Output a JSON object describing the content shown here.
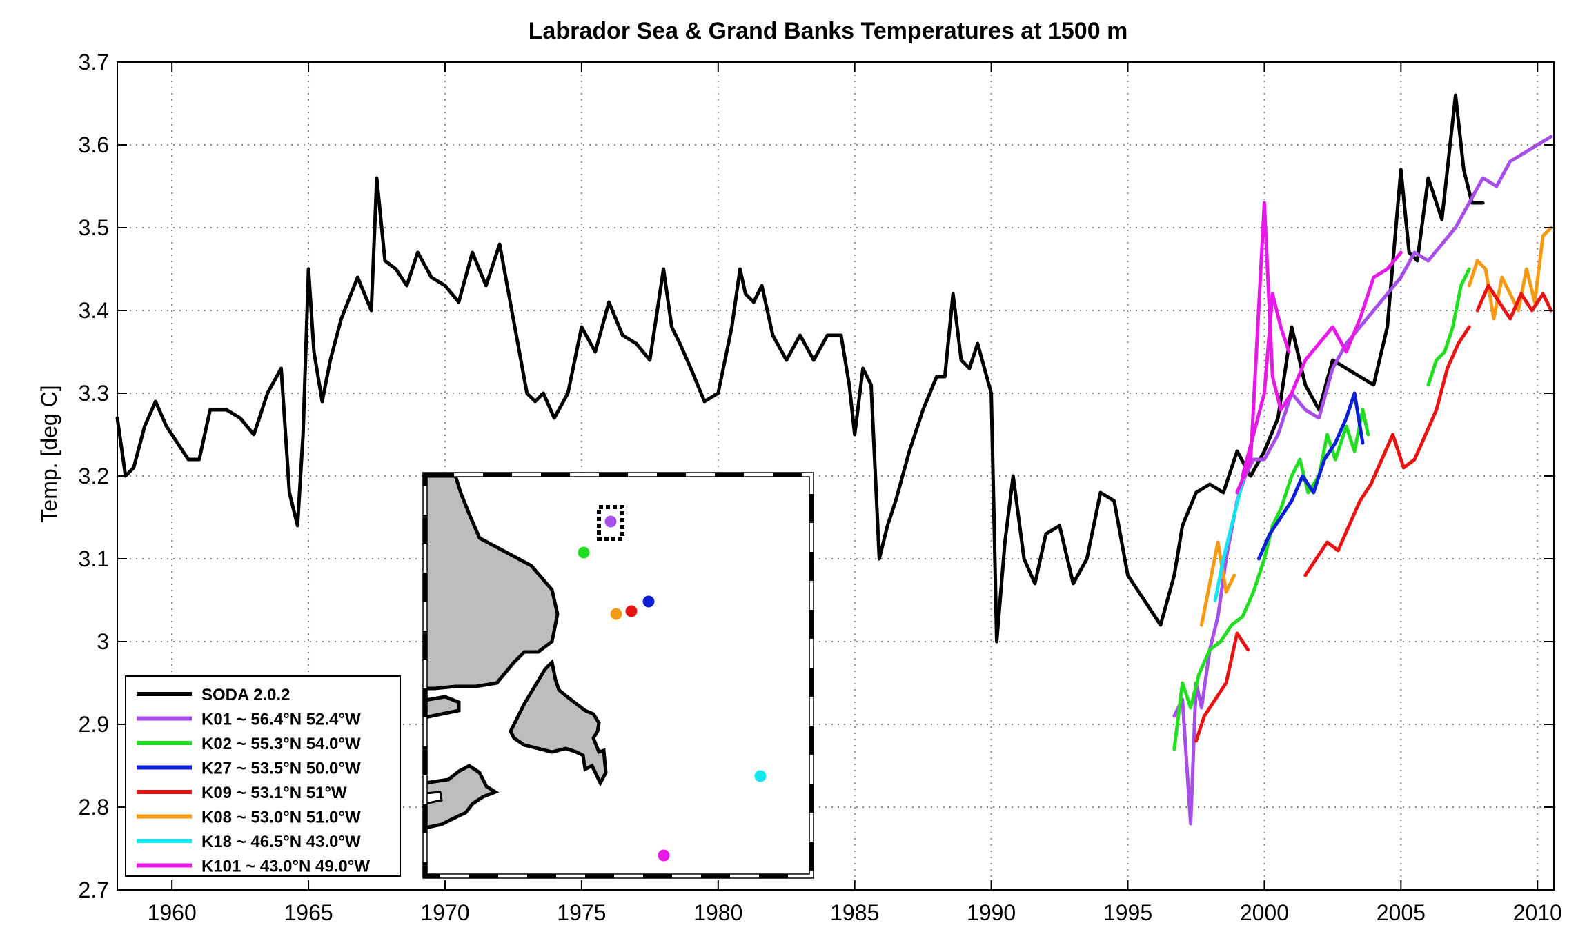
{
  "chart_data": {
    "type": "line",
    "title": "Labrador Sea & Grand Banks Temperatures at 1500 m",
    "xlabel": "",
    "ylabel": "Temp. [deg C]",
    "xlim": [
      1958,
      2010.6
    ],
    "ylim": [
      2.7,
      3.7
    ],
    "xticks": [
      1960,
      1965,
      1970,
      1975,
      1980,
      1985,
      1990,
      1995,
      2000,
      2005,
      2010
    ],
    "yticks": [
      2.7,
      2.8,
      2.9,
      3.0,
      3.1,
      3.2,
      3.3,
      3.4,
      3.5,
      3.6,
      3.7
    ],
    "ytick_labels": [
      "2.7",
      "2.8",
      "2.9",
      "3",
      "3.1",
      "3.2",
      "3.3",
      "3.4",
      "3.5",
      "3.6",
      "3.7"
    ],
    "grid": true,
    "legend_position": "bottom-left",
    "series": [
      {
        "name": "SODA 2.0.2",
        "color": "#000000",
        "x": [
          1958.0,
          1958.3,
          1958.6,
          1959.0,
          1959.4,
          1959.8,
          1960.2,
          1960.6,
          1961.0,
          1961.4,
          1962.0,
          1962.5,
          1963.0,
          1963.5,
          1964.0,
          1964.3,
          1964.6,
          1964.8,
          1965.0,
          1965.2,
          1965.5,
          1965.8,
          1966.2,
          1966.8,
          1967.3,
          1967.5,
          1967.8,
          1968.2,
          1968.6,
          1969.0,
          1969.5,
          1970.0,
          1970.5,
          1971.0,
          1971.5,
          1972.0,
          1972.5,
          1973.0,
          1973.3,
          1973.6,
          1974.0,
          1974.5,
          1975.0,
          1975.5,
          1976.0,
          1976.5,
          1977.0,
          1977.5,
          1978.0,
          1978.3,
          1978.6,
          1979.0,
          1979.5,
          1980.0,
          1980.5,
          1980.8,
          1981.0,
          1981.3,
          1981.6,
          1982.0,
          1982.5,
          1983.0,
          1983.5,
          1984.0,
          1984.5,
          1984.8,
          1985.0,
          1985.3,
          1985.6,
          1985.9,
          1986.2,
          1986.5,
          1987.0,
          1987.5,
          1988.0,
          1988.3,
          1988.6,
          1988.9,
          1989.2,
          1989.5,
          1990.0,
          1990.2,
          1990.5,
          1990.8,
          1991.2,
          1991.6,
          1992.0,
          1992.5,
          1993.0,
          1993.5,
          1994.0,
          1994.5,
          1995.0,
          1995.4,
          1995.8,
          1996.2,
          1996.7,
          1997.0,
          1997.5,
          1998.0,
          1998.5,
          1999.0,
          1999.5,
          2000.0,
          2000.5,
          2001.0,
          2001.5,
          2002.0,
          2002.5,
          2003.0,
          2003.5,
          2004.0,
          2004.5,
          2005.0,
          2005.3,
          2005.6,
          2006.0,
          2006.5,
          2007.0,
          2007.3,
          2007.6,
          2008.0
        ],
        "y": [
          3.27,
          3.2,
          3.21,
          3.26,
          3.29,
          3.26,
          3.24,
          3.22,
          3.22,
          3.28,
          3.28,
          3.27,
          3.25,
          3.3,
          3.33,
          3.18,
          3.14,
          3.25,
          3.45,
          3.35,
          3.29,
          3.34,
          3.39,
          3.44,
          3.4,
          3.56,
          3.46,
          3.45,
          3.43,
          3.47,
          3.44,
          3.43,
          3.41,
          3.47,
          3.43,
          3.48,
          3.39,
          3.3,
          3.29,
          3.3,
          3.27,
          3.3,
          3.38,
          3.35,
          3.41,
          3.37,
          3.36,
          3.34,
          3.45,
          3.38,
          3.36,
          3.33,
          3.29,
          3.3,
          3.38,
          3.45,
          3.42,
          3.41,
          3.43,
          3.37,
          3.34,
          3.37,
          3.34,
          3.37,
          3.37,
          3.31,
          3.25,
          3.33,
          3.31,
          3.1,
          3.14,
          3.17,
          3.23,
          3.28,
          3.32,
          3.32,
          3.42,
          3.34,
          3.33,
          3.36,
          3.3,
          3.0,
          3.12,
          3.2,
          3.1,
          3.07,
          3.13,
          3.14,
          3.07,
          3.1,
          3.18,
          3.17,
          3.08,
          3.06,
          3.04,
          3.02,
          3.08,
          3.14,
          3.18,
          3.19,
          3.18,
          3.23,
          3.2,
          3.23,
          3.27,
          3.38,
          3.31,
          3.28,
          3.34,
          3.33,
          3.32,
          3.31,
          3.38,
          3.57,
          3.47,
          3.46,
          3.56,
          3.51,
          3.66,
          3.57,
          3.53,
          3.53
        ]
      },
      {
        "name": "K01 ~ 56.4°N 52.4°W",
        "color": "#a64ee8",
        "x": [
          1996.7,
          1997.0,
          1997.3,
          1997.5,
          1997.7,
          1998.0,
          1998.3,
          1998.6,
          1999.0,
          1999.3,
          1999.6,
          2000.0,
          2000.5,
          2001.0,
          2001.5,
          2002.0,
          2002.5,
          2003.0,
          2003.5,
          2004.0,
          2004.5,
          2005.0,
          2005.5,
          2006.0,
          2006.5,
          2007.0,
          2007.5,
          2008.0,
          2008.5,
          2009.0,
          2009.5,
          2010.0,
          2010.5
        ],
        "y": [
          2.91,
          2.93,
          2.78,
          2.95,
          2.92,
          2.99,
          3.03,
          3.1,
          3.17,
          3.2,
          3.22,
          3.22,
          3.25,
          3.3,
          3.28,
          3.27,
          3.33,
          3.36,
          3.38,
          3.4,
          3.42,
          3.44,
          3.47,
          3.46,
          3.48,
          3.5,
          3.53,
          3.56,
          3.55,
          3.58,
          3.59,
          3.6,
          3.61
        ]
      },
      {
        "name": "K02 ~ 55.3°N 54.0°W",
        "color": "#22dd22",
        "x": [
          1996.7,
          1997.0,
          1997.3,
          1997.6,
          1998.0,
          1998.4,
          1998.8,
          1999.2,
          1999.6,
          2000.0,
          2000.3,
          2000.6,
          2001.0,
          2001.3,
          2001.6,
          2002.0,
          2002.3,
          2002.6,
          2003.0,
          2003.3,
          2003.6,
          2003.8
        ],
        "y": [
          2.87,
          2.95,
          2.92,
          2.96,
          2.99,
          3.0,
          3.02,
          3.03,
          3.06,
          3.1,
          3.14,
          3.16,
          3.2,
          3.22,
          3.18,
          3.2,
          3.25,
          3.22,
          3.26,
          3.23,
          3.28,
          3.25
        ]
      },
      {
        "name": "K27 ~ 53.5°N 50.0°W",
        "color": "#0b1fd6",
        "x": [
          1999.8,
          2000.2,
          2000.6,
          2001.0,
          2001.4,
          2001.8,
          2002.2,
          2002.6,
          2003.0,
          2003.3,
          2003.6
        ],
        "y": [
          3.1,
          3.13,
          3.15,
          3.17,
          3.2,
          3.18,
          3.22,
          3.24,
          3.27,
          3.3,
          3.24
        ]
      },
      {
        "name": "K09 ~ 53.1°N 51°W",
        "color": "#e81414",
        "x": [
          1997.5,
          1997.8,
          1998.2,
          1998.6,
          1999.0,
          1999.4
        ],
        "y": [
          2.88,
          2.91,
          2.93,
          2.95,
          3.01,
          2.99
        ]
      },
      {
        "name": "K08 ~ 53.0°N 51.0°W",
        "color": "#f59a14",
        "x": [
          1997.7,
          1998.0,
          1998.3,
          1998.6,
          1998.9
        ],
        "y": [
          3.02,
          3.07,
          3.12,
          3.06,
          3.08
        ]
      },
      {
        "name": "K18 ~ 46.5°N 43.0°W",
        "color": "#14e6f0",
        "x": [
          1998.2,
          1998.5,
          1998.8,
          1999.1,
          1999.4
        ],
        "y": [
          3.05,
          3.1,
          3.14,
          3.18,
          3.22
        ]
      },
      {
        "name": "K101 ~ 43.0°N 49.0°W",
        "color": "#e619e6",
        "x": [
          1999.0,
          1999.5,
          2000.0,
          2000.3,
          2000.6,
          2001.0,
          2001.5,
          2002.0,
          2002.5,
          2003.0,
          2003.5,
          2004.0,
          2004.5,
          2005.0
        ],
        "y": [
          3.18,
          3.22,
          3.53,
          3.32,
          3.28,
          3.3,
          3.34,
          3.36,
          3.38,
          3.35,
          3.39,
          3.44,
          3.45,
          3.47
        ]
      },
      {
        "name": "",
        "color": "#e81414",
        "x": [
          2001.5,
          2001.9,
          2002.3,
          2002.7,
          2003.1,
          2003.5,
          2003.9,
          2004.3,
          2004.7,
          2005.1,
          2005.5,
          2005.9,
          2006.3,
          2006.7,
          2007.1,
          2007.5
        ],
        "y": [
          3.08,
          3.1,
          3.12,
          3.11,
          3.14,
          3.17,
          3.19,
          3.22,
          3.25,
          3.21,
          3.22,
          3.25,
          3.28,
          3.33,
          3.36,
          3.38
        ]
      },
      {
        "name": "",
        "color": "#22dd22",
        "x": [
          2006.0,
          2006.3,
          2006.6,
          2006.9,
          2007.2,
          2007.5
        ],
        "y": [
          3.31,
          3.34,
          3.35,
          3.38,
          3.43,
          3.45
        ]
      },
      {
        "name": "",
        "color": "#f59a14",
        "x": [
          2007.5,
          2007.8,
          2008.1,
          2008.4,
          2008.7,
          2009.0,
          2009.3,
          2009.6,
          2009.9,
          2010.2,
          2010.5
        ],
        "y": [
          3.43,
          3.46,
          3.45,
          3.39,
          3.44,
          3.42,
          3.4,
          3.45,
          3.41,
          3.49,
          3.5
        ]
      },
      {
        "name": "",
        "color": "#e81414",
        "x": [
          2007.8,
          2008.2,
          2008.6,
          2009.0,
          2009.4,
          2009.8,
          2010.2,
          2010.5
        ],
        "y": [
          3.4,
          3.43,
          3.41,
          3.39,
          3.42,
          3.4,
          3.42,
          3.4
        ]
      },
      {
        "name": "",
        "color": "#e619e6",
        "x": [
          1999.2,
          1999.6,
          2000.0,
          2000.3,
          2000.6,
          2000.9
        ],
        "y": [
          3.2,
          3.25,
          3.3,
          3.42,
          3.38,
          3.35
        ]
      }
    ],
    "legend": [
      {
        "label": "SODA 2.0.2",
        "color": "#000000"
      },
      {
        "label": "K01 ~ 56.4°N 52.4°W",
        "color": "#a64ee8"
      },
      {
        "label": "K02 ~ 55.3°N 54.0°W",
        "color": "#22dd22"
      },
      {
        "label": "K27 ~ 53.5°N 50.0°W",
        "color": "#0b1fd6"
      },
      {
        "label": "K09 ~ 53.1°N 51°W",
        "color": "#e81414"
      },
      {
        "label": "K08 ~ 53.0°N 51.0°W",
        "color": "#f59a14"
      },
      {
        "label": "K18 ~ 46.5°N 43.0°W",
        "color": "#14e6f0"
      },
      {
        "label": "K101 ~ 43.0°N 49.0°W",
        "color": "#e619e6"
      }
    ],
    "inset_map": {
      "description_visible": "inset location map with mooring dots",
      "stations": [
        {
          "name": "K01",
          "color": "#a64ee8"
        },
        {
          "name": "K02",
          "color": "#22dd22"
        },
        {
          "name": "K27",
          "color": "#0b1fd6"
        },
        {
          "name": "K09",
          "color": "#e81414"
        },
        {
          "name": "K08",
          "color": "#f59a14"
        },
        {
          "name": "K18",
          "color": "#14e6f0"
        },
        {
          "name": "K101",
          "color": "#e619e6"
        }
      ],
      "land_color": "#bdbdbd"
    }
  }
}
